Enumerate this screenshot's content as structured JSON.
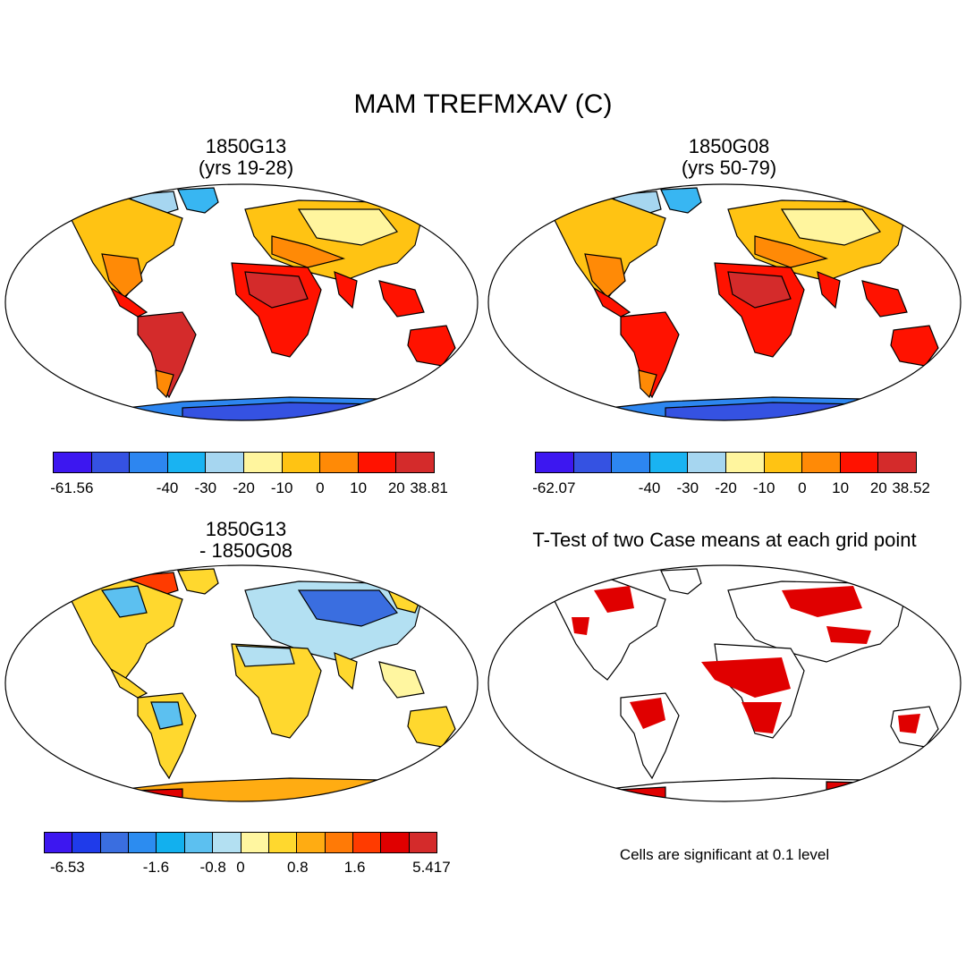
{
  "figure": {
    "title": "MAM TREFMXAV (C)"
  },
  "panels": [
    {
      "title_line1": "1850G13",
      "title_line2": "(yrs 19-28)",
      "colorbar": {
        "colors": [
          "#3d17f0",
          "#3552e2",
          "#2d86f0",
          "#19b3f2",
          "#a6d6f0",
          "#fff59e",
          "#ffc313",
          "#ff8a06",
          "#ff1200",
          "#d42b2b"
        ],
        "labels": [
          "-61.56",
          "-40",
          "-30",
          "-20",
          "-10",
          "0",
          "10",
          "20",
          "38.81"
        ]
      }
    },
    {
      "title_line1": "1850G08",
      "title_line2": "(yrs 50-79)",
      "colorbar": {
        "colors": [
          "#3d17f0",
          "#3552e2",
          "#2d86f0",
          "#19b3f2",
          "#a6d6f0",
          "#fff59e",
          "#ffc313",
          "#ff8a06",
          "#ff1200",
          "#d42b2b"
        ],
        "labels": [
          "-62.07",
          "-40",
          "-30",
          "-20",
          "-10",
          "0",
          "10",
          "20",
          "38.52"
        ]
      }
    },
    {
      "title_line1": "1850G13",
      "title_line2": "- 1850G08",
      "colorbar": {
        "colors": [
          "#3d17f0",
          "#1f3bea",
          "#3a6ee0",
          "#2c8cf0",
          "#12b0ee",
          "#5cc0f0",
          "#b3e0f2",
          "#fff6a0",
          "#ffd82e",
          "#ffac12",
          "#ff7a06",
          "#ff3b00",
          "#e00000",
          "#d42b2b"
        ],
        "labels": [
          "-6.53",
          "-1.6",
          "-0.8",
          "0",
          "0.8",
          "1.6",
          "5.417"
        ]
      }
    },
    {
      "title_line1": "T-Test of two Case means at each grid point",
      "note": "Cells are significant at 0.1 level"
    }
  ]
}
